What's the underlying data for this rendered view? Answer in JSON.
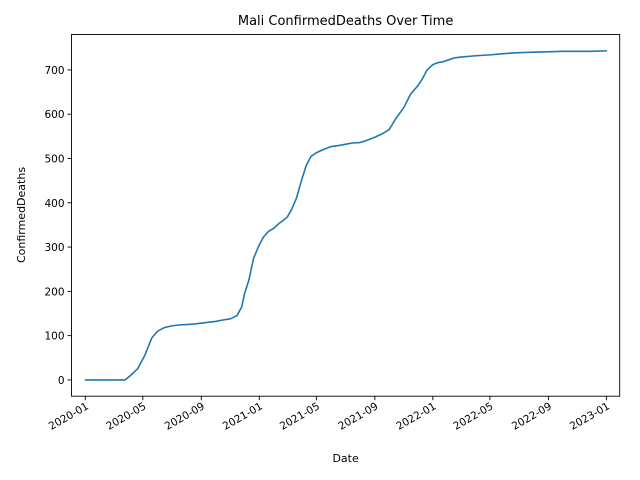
{
  "chart_data": {
    "type": "line",
    "title": "Mali  ConfirmedDeaths Over Time",
    "xlabel": "Date",
    "ylabel": "ConfirmedDeaths",
    "x_type": "date",
    "xlim": [
      "2019-12-03",
      "2023-01-29"
    ],
    "ylim": [
      -36.8,
      780
    ],
    "grid": false,
    "legend": "none",
    "colors": {
      "line": "#1f77b4"
    },
    "x_ticks": [
      "2020-01",
      "2020-05",
      "2020-09",
      "2021-01",
      "2021-05",
      "2021-09",
      "2022-01",
      "2022-05",
      "2022-09",
      "2023-01"
    ],
    "y_ticks": [
      0,
      100,
      200,
      300,
      400,
      500,
      600,
      700
    ],
    "series": [
      {
        "x": [
          "2020-01-01",
          "2020-03-01",
          "2020-03-25",
          "2020-04-05",
          "2020-04-20",
          "2020-05-05",
          "2020-05-20",
          "2020-06-01",
          "2020-06-15",
          "2020-07-01",
          "2020-07-15",
          "2020-08-01",
          "2020-08-15",
          "2020-09-01",
          "2020-09-15",
          "2020-10-01",
          "2020-10-15",
          "2020-11-01",
          "2020-11-15",
          "2020-11-25",
          "2020-12-01",
          "2020-12-10",
          "2020-12-20",
          "2021-01-01",
          "2021-01-10",
          "2021-01-20",
          "2021-02-01",
          "2021-02-10",
          "2021-02-20",
          "2021-03-01",
          "2021-03-10",
          "2021-03-20",
          "2021-04-01",
          "2021-04-10",
          "2021-04-20",
          "2021-05-01",
          "2021-05-15",
          "2021-06-01",
          "2021-06-15",
          "2021-07-01",
          "2021-07-15",
          "2021-08-01",
          "2021-08-15",
          "2021-09-01",
          "2021-09-15",
          "2021-10-01",
          "2021-10-15",
          "2021-11-01",
          "2021-11-15",
          "2021-12-01",
          "2021-12-10",
          "2021-12-20",
          "2022-01-01",
          "2022-01-10",
          "2022-01-20",
          "2022-02-01",
          "2022-02-15",
          "2022-03-01",
          "2022-04-01",
          "2022-05-01",
          "2022-06-01",
          "2022-07-01",
          "2022-08-01",
          "2022-09-01",
          "2022-10-01",
          "2022-11-01",
          "2022-12-01",
          "2023-01-01"
        ],
        "y": [
          0,
          0,
          0,
          10,
          25,
          55,
          95,
          110,
          118,
          122,
          124,
          125,
          126,
          128,
          130,
          132,
          135,
          138,
          145,
          165,
          195,
          225,
          275,
          305,
          323,
          335,
          343,
          352,
          360,
          368,
          385,
          410,
          455,
          485,
          505,
          513,
          520,
          527,
          529,
          532,
          535,
          536,
          541,
          548,
          555,
          565,
          590,
          615,
          645,
          665,
          680,
          700,
          712,
          716,
          718,
          722,
          727,
          729,
          732,
          734,
          737,
          739,
          740,
          741,
          742,
          742,
          742,
          743
        ]
      }
    ]
  }
}
